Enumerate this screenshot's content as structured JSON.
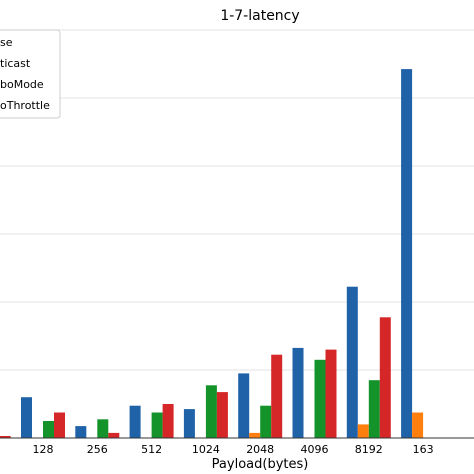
{
  "chart_data": {
    "type": "bar",
    "title": "1-7-latency",
    "xlabel": "Payload(bytes)",
    "ylabel": "",
    "categories": [
      "128",
      "256",
      "512",
      "1024",
      "2048",
      "4096",
      "8192",
      "163"
    ],
    "leading_partial_category": true,
    "series": [
      {
        "name": "se",
        "color": "#1f62a8",
        "values": [
          24,
          7,
          19,
          17,
          38,
          53,
          89,
          217
        ]
      },
      {
        "name": "ticast",
        "color": "#ff7f0e",
        "values": [
          0,
          0,
          0,
          0,
          3,
          0,
          8,
          15
        ]
      },
      {
        "name": "boMode",
        "color": "#14932a",
        "values": [
          10,
          11,
          15,
          31,
          19,
          46,
          34,
          0
        ]
      },
      {
        "name": "oThrottle",
        "color": "#d62728",
        "values": [
          15,
          3,
          20,
          27,
          49,
          52,
          71,
          0
        ]
      }
    ],
    "ylim": [
      0,
      240
    ],
    "grid": true,
    "legend_position": "top-left"
  }
}
